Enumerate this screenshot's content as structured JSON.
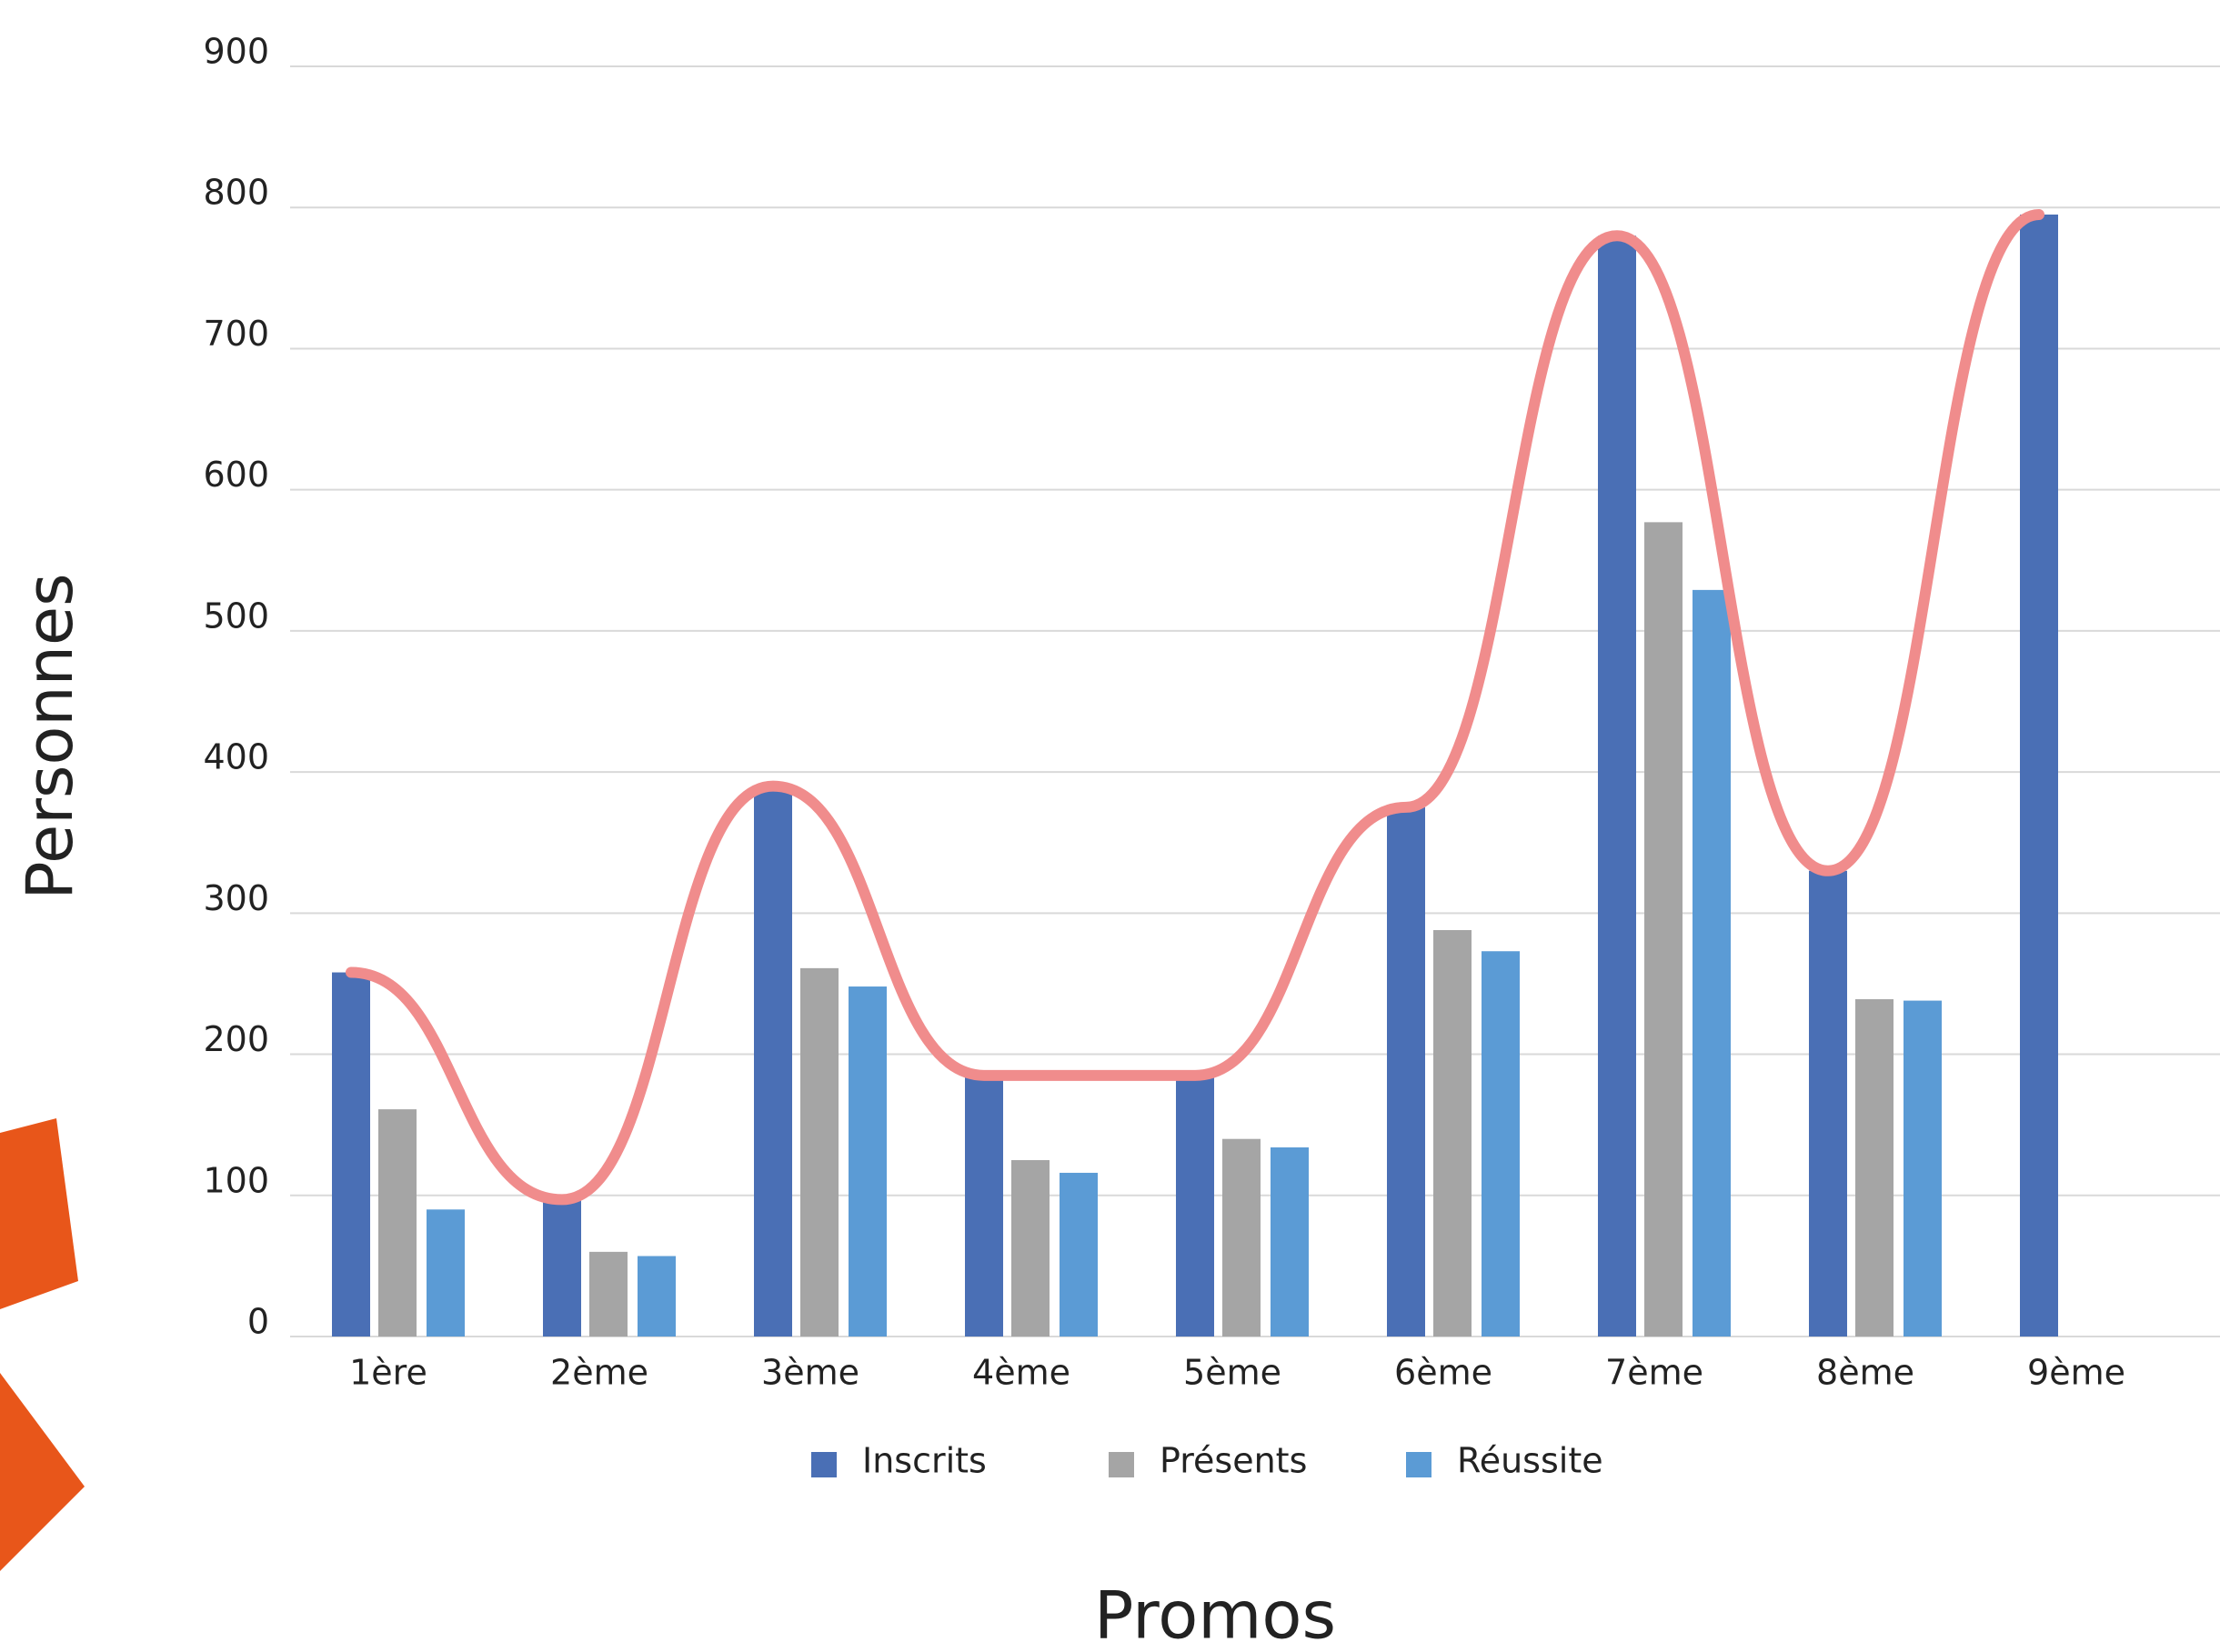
{
  "chart_data": {
    "type": "bar",
    "x_label": "Promos",
    "y_label": "Personnes",
    "categories": [
      "1ère",
      "2ème",
      "3ème",
      "4ème",
      "5ème",
      "6ème",
      "7ème",
      "8ème",
      "9ème"
    ],
    "series": [
      {
        "name": "Inscrits",
        "color": "#4a6fb5",
        "values": [
          258,
          97,
          390,
          185,
          185,
          375,
          780,
          330,
          795
        ]
      },
      {
        "name": "Présents",
        "color": "#a5a5a5",
        "values": [
          161,
          60,
          261,
          125,
          140,
          288,
          577,
          239,
          null
        ]
      },
      {
        "name": "Réussite",
        "color": "#5b9bd5",
        "values": [
          90,
          57,
          248,
          116,
          134,
          273,
          529,
          238,
          null
        ]
      }
    ],
    "ylim": [
      0,
      900
    ],
    "yticks": [
      0,
      100,
      200,
      300,
      400,
      500,
      600,
      700,
      800,
      900
    ],
    "grid": true,
    "legend": "bottom",
    "curve_color": "#f08c8c"
  }
}
